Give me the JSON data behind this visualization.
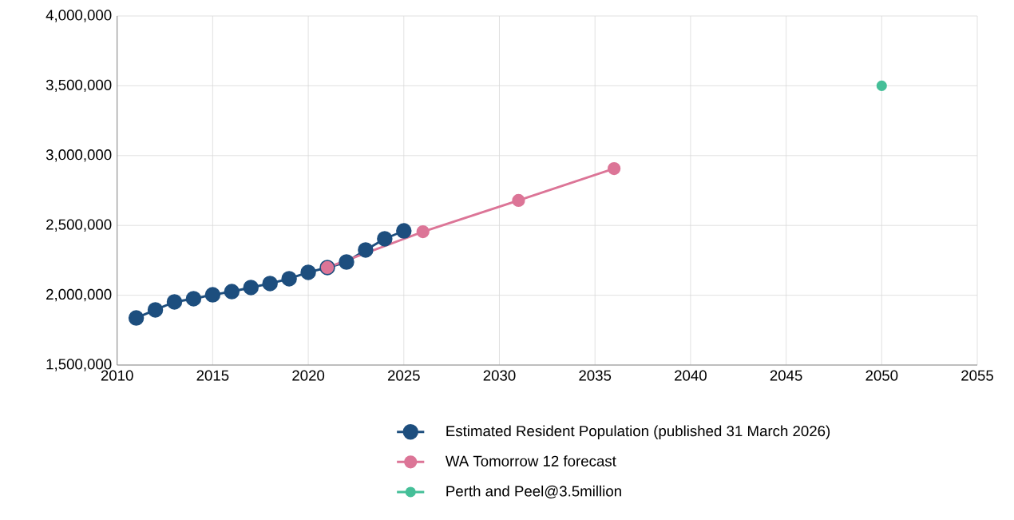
{
  "chart_data": {
    "type": "line",
    "series": [
      {
        "name": "Estimated Resident Population (published 31 March 2026)",
        "color": "#1d4e7e",
        "x": [
          2011,
          2012,
          2013,
          2014,
          2015,
          2016,
          2017,
          2018,
          2019,
          2020,
          2021,
          2022,
          2023,
          2024,
          2025
        ],
        "values": [
          1837000,
          1895000,
          1952000,
          1975000,
          2003000,
          2026000,
          2055000,
          2084000,
          2118000,
          2164000,
          2198000,
          2238000,
          2324000,
          2404000,
          2461000
        ]
      },
      {
        "name": "WA Tomorrow 12 forecast",
        "color": "#dc7597",
        "x": [
          2021,
          2026,
          2031,
          2036
        ],
        "values": [
          2198000,
          2455000,
          2679000,
          2907000
        ]
      },
      {
        "name": "Perth and Peel@3.5million",
        "color": "#45bf98",
        "x": [
          2050
        ],
        "values": [
          3500000
        ]
      }
    ],
    "xlim": [
      2010,
      2055
    ],
    "xticks": [
      2010,
      2015,
      2020,
      2025,
      2030,
      2035,
      2040,
      2045,
      2050,
      2055
    ],
    "ylim": [
      1500000,
      4000000
    ],
    "yticks": [
      {
        "value": 1500000,
        "label": "1,500,000"
      },
      {
        "value": 2000000,
        "label": "2,000,000"
      },
      {
        "value": 2500000,
        "label": "2,500,000"
      },
      {
        "value": 3000000,
        "label": "3,000,000"
      },
      {
        "value": 3500000,
        "label": "3,500,000"
      },
      {
        "value": 4000000,
        "label": "4,000,000"
      }
    ],
    "grid": true,
    "legend": "bottom",
    "marker": "circle",
    "line_style": "solid"
  }
}
